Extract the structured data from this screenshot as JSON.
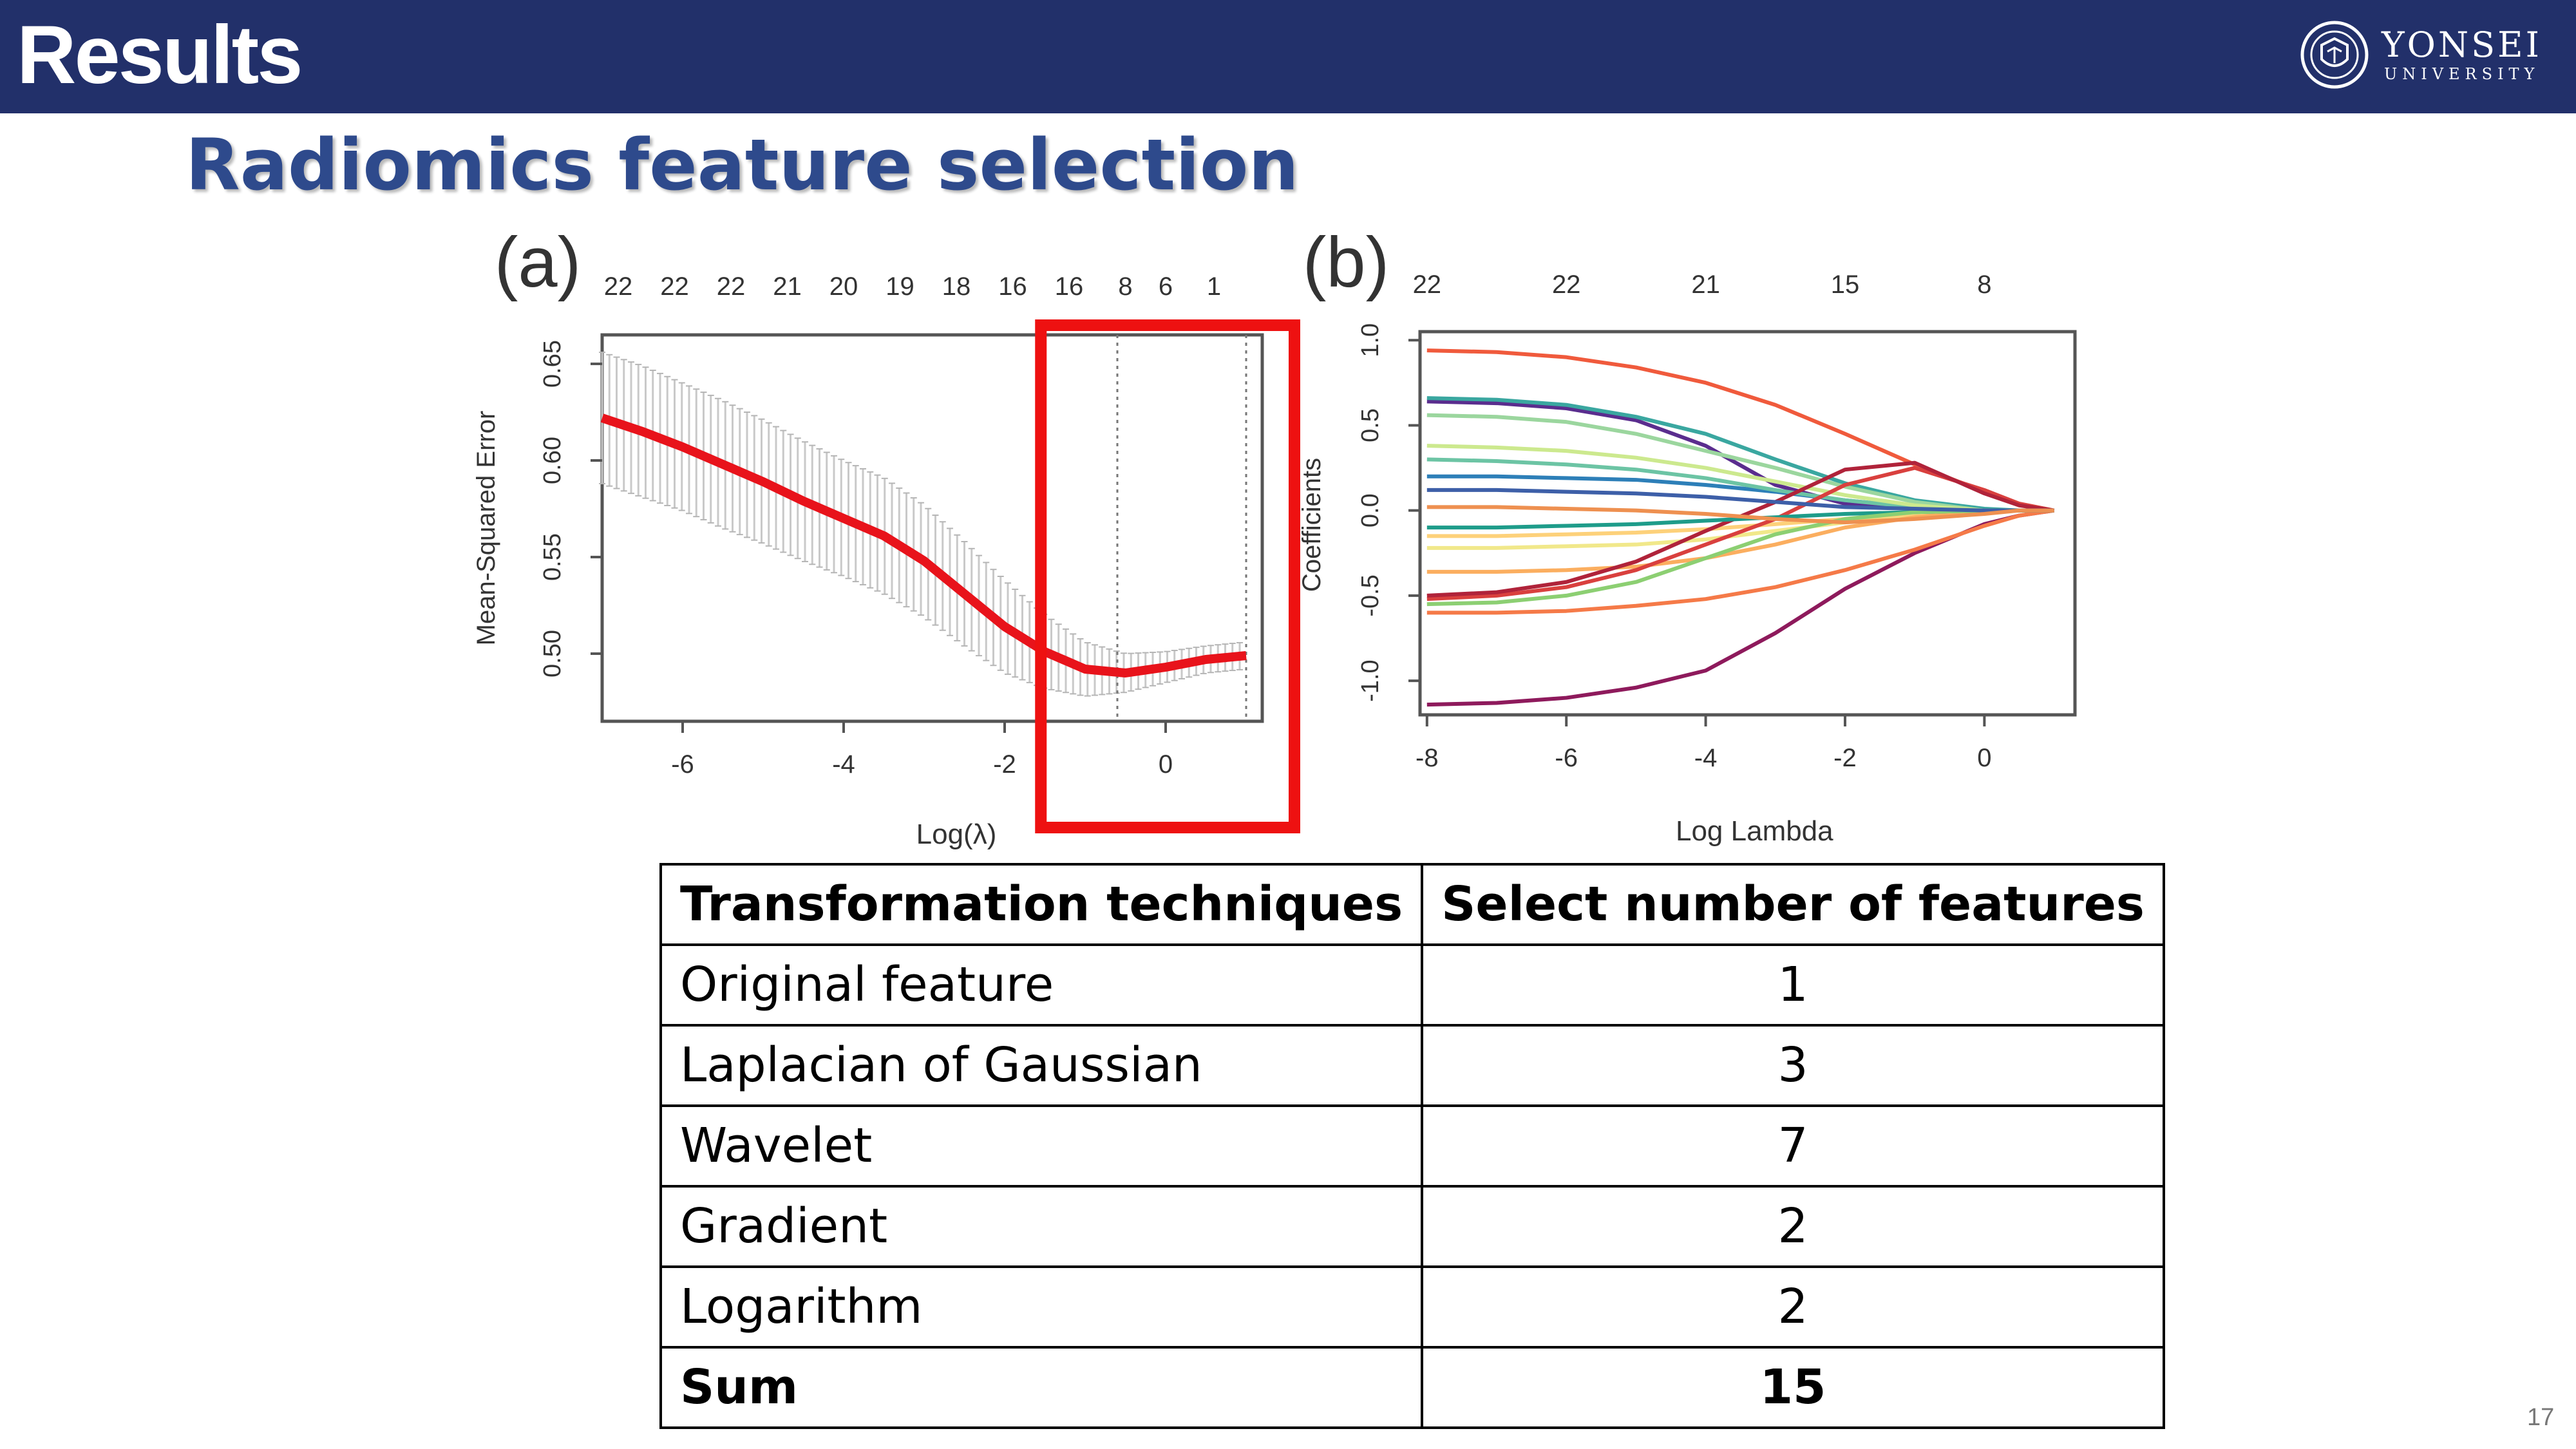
{
  "header": {
    "title": "Results",
    "logo": {
      "name": "YONSEI",
      "sub": "UNIVERSITY",
      "icon": "university-seal-icon"
    }
  },
  "subtitle": "Radiomics feature selection",
  "chart_data": [
    {
      "panel": "(a)",
      "type": "line",
      "xlabel": "Log(λ)",
      "ylabel": "Mean-Squared Error",
      "xlim": [
        -7,
        1.2
      ],
      "ylim": [
        0.465,
        0.665
      ],
      "x_ticks": [
        -6,
        -4,
        -2,
        0
      ],
      "y_ticks": [
        "0.50",
        "0.55",
        "0.60",
        "0.65"
      ],
      "top_ticks": [
        {
          "x": -6.8,
          "label": "22"
        },
        {
          "x": -6.1,
          "label": "22"
        },
        {
          "x": -5.4,
          "label": "22"
        },
        {
          "x": -4.7,
          "label": "21"
        },
        {
          "x": -4.0,
          "label": "20"
        },
        {
          "x": -3.3,
          "label": "19"
        },
        {
          "x": -2.6,
          "label": "18"
        },
        {
          "x": -1.9,
          "label": "16"
        },
        {
          "x": -1.2,
          "label": "16"
        },
        {
          "x": -0.5,
          "label": "8"
        },
        {
          "x": 0.0,
          "label": "6"
        },
        {
          "x": 0.6,
          "label": "1"
        }
      ],
      "series": [
        {
          "x": [
            -7,
            -6.5,
            -6,
            -5.5,
            -5,
            -4.5,
            -4,
            -3.5,
            -3,
            -2.5,
            -2,
            -1.5,
            -1,
            -0.5,
            0,
            0.5,
            1
          ],
          "y": [
            0.622,
            0.615,
            0.607,
            0.598,
            0.589,
            0.579,
            0.57,
            0.561,
            0.548,
            0.531,
            0.514,
            0.501,
            0.492,
            0.49,
            0.493,
            0.497,
            0.499
          ],
          "err": [
            0.034,
            0.034,
            0.033,
            0.033,
            0.032,
            0.031,
            0.03,
            0.03,
            0.029,
            0.027,
            0.024,
            0.019,
            0.014,
            0.01,
            0.008,
            0.007,
            0.007
          ],
          "color": "#e8131b"
        }
      ],
      "vlines": [
        -0.6,
        1.0
      ],
      "highlight": {
        "x": [
          -1.55,
          1.6
        ],
        "y": [
          0.41,
          0.67
        ],
        "color": "#ee1111"
      }
    },
    {
      "panel": "(b)",
      "type": "line",
      "xlabel": "Log Lambda",
      "ylabel": "Coefficients",
      "xlim": [
        -8.1,
        1.3
      ],
      "ylim": [
        -1.2,
        1.05
      ],
      "x_ticks": [
        -8,
        -6,
        -4,
        -2,
        0
      ],
      "y_ticks": [
        "-1.0",
        "-0.5",
        "0.0",
        "0.5",
        "1.0"
      ],
      "top_ticks": [
        {
          "x": -8,
          "label": "22"
        },
        {
          "x": -6,
          "label": "22"
        },
        {
          "x": -4,
          "label": "21"
        },
        {
          "x": -2,
          "label": "15"
        },
        {
          "x": 0,
          "label": "8"
        }
      ],
      "x": [
        -8,
        -7,
        -6,
        -5,
        -4,
        -3,
        -2,
        -1,
        0,
        0.5,
        1
      ],
      "series": [
        {
          "color": "#f05a3c",
          "values": [
            0.94,
            0.93,
            0.9,
            0.84,
            0.75,
            0.62,
            0.45,
            0.27,
            0.11,
            0.04,
            0.0
          ]
        },
        {
          "color": "#8e1a5c",
          "values": [
            -1.14,
            -1.13,
            -1.1,
            -1.04,
            -0.94,
            -0.72,
            -0.46,
            -0.25,
            -0.08,
            -0.03,
            0.0
          ]
        },
        {
          "color": "#5a2d8e",
          "values": [
            0.64,
            0.63,
            0.6,
            0.53,
            0.38,
            0.15,
            0.04,
            0.01,
            0.0,
            0.0,
            0.0
          ]
        },
        {
          "color": "#2d7fb8",
          "values": [
            0.2,
            0.2,
            0.19,
            0.18,
            0.15,
            0.11,
            0.06,
            0.02,
            0.0,
            0.0,
            0.0
          ]
        },
        {
          "color": "#3aa7a0",
          "values": [
            0.66,
            0.65,
            0.62,
            0.55,
            0.45,
            0.3,
            0.16,
            0.06,
            0.01,
            0.0,
            0.0
          ]
        },
        {
          "color": "#6cc4a4",
          "values": [
            0.3,
            0.29,
            0.27,
            0.24,
            0.19,
            0.12,
            0.06,
            0.02,
            0.0,
            0.0,
            0.0
          ]
        },
        {
          "color": "#9bd69e",
          "values": [
            0.56,
            0.55,
            0.52,
            0.45,
            0.35,
            0.25,
            0.14,
            0.05,
            0.0,
            0.0,
            0.0
          ]
        },
        {
          "color": "#cce98e",
          "values": [
            0.38,
            0.37,
            0.35,
            0.31,
            0.25,
            0.17,
            0.09,
            0.03,
            0.0,
            0.0,
            0.0
          ]
        },
        {
          "color": "#f1e88a",
          "values": [
            -0.22,
            -0.22,
            -0.21,
            -0.2,
            -0.17,
            -0.12,
            -0.07,
            -0.03,
            0.0,
            0.0,
            0.0
          ]
        },
        {
          "color": "#fdd17a",
          "values": [
            -0.15,
            -0.15,
            -0.14,
            -0.13,
            -0.11,
            -0.08,
            -0.05,
            -0.02,
            0.0,
            0.0,
            0.0
          ]
        },
        {
          "color": "#fbae5f",
          "values": [
            -0.36,
            -0.36,
            -0.35,
            -0.33,
            -0.28,
            -0.2,
            -0.1,
            -0.04,
            0.0,
            0.0,
            0.0
          ]
        },
        {
          "color": "#f57a48",
          "values": [
            -0.6,
            -0.6,
            -0.59,
            -0.56,
            -0.52,
            -0.45,
            -0.35,
            -0.23,
            -0.09,
            -0.03,
            0.0
          ]
        },
        {
          "color": "#d9403e",
          "values": [
            -0.52,
            -0.5,
            -0.45,
            -0.35,
            -0.2,
            -0.05,
            0.15,
            0.25,
            0.12,
            0.04,
            0.0
          ]
        },
        {
          "color": "#b0233a",
          "values": [
            -0.5,
            -0.48,
            -0.42,
            -0.3,
            -0.12,
            0.05,
            0.24,
            0.28,
            0.1,
            0.03,
            0.0
          ]
        },
        {
          "color": "#1e9c8a",
          "values": [
            -0.1,
            -0.1,
            -0.09,
            -0.08,
            -0.06,
            -0.04,
            -0.02,
            -0.01,
            0.0,
            0.0,
            0.0
          ]
        },
        {
          "color": "#8ccf72",
          "values": [
            -0.55,
            -0.54,
            -0.5,
            -0.42,
            -0.28,
            -0.14,
            -0.05,
            -0.01,
            0.0,
            0.0,
            0.0
          ]
        },
        {
          "color": "#3d5fa8",
          "values": [
            0.12,
            0.12,
            0.11,
            0.1,
            0.08,
            0.05,
            0.02,
            0.01,
            0.0,
            0.0,
            0.0
          ]
        },
        {
          "color": "#ee9050",
          "values": [
            0.02,
            0.02,
            0.01,
            0.0,
            -0.02,
            -0.05,
            -0.07,
            -0.05,
            -0.02,
            0.0,
            0.0
          ]
        }
      ]
    }
  ],
  "table": {
    "headers": [
      "Transformation techniques",
      "Select number of features"
    ],
    "rows": [
      {
        "technique": "Original feature",
        "count": "1"
      },
      {
        "technique": "Laplacian of Gaussian",
        "count": "3"
      },
      {
        "technique": "Wavelet",
        "count": "7"
      },
      {
        "technique": "Gradient",
        "count": "2"
      },
      {
        "technique": "Logarithm",
        "count": "2"
      }
    ],
    "sum": {
      "label": "Sum",
      "count": "15"
    }
  },
  "page_number": "17"
}
